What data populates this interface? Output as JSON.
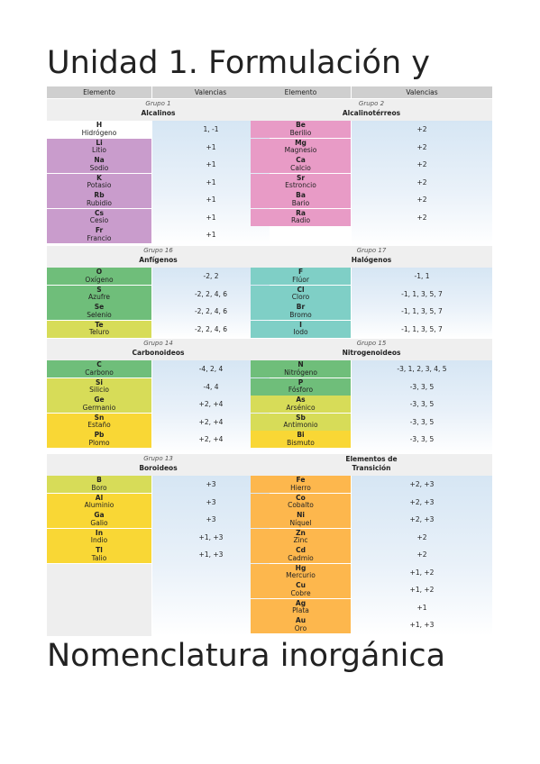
{
  "title_line1": "Unidad 1. Formulación y",
  "title_line2": "Nomenclatura inorgánica",
  "headers": [
    "Elemento",
    "Valencias",
    "Elemento",
    "Valencias"
  ],
  "left_groups": [
    {
      "title": "Grupo 1",
      "subtitle": "Alcalinos",
      "color": "#c99ccc",
      "elements": [
        {
          "sym": "H",
          "name": "Hidrógeno",
          "val": "1, -1",
          "color": "#ffffff"
        },
        {
          "sym": "Li",
          "name": "Litio",
          "val": "+1"
        },
        {
          "sym": "Na",
          "name": "Sodio",
          "val": "+1"
        },
        {
          "sym": "K",
          "name": "Potasio",
          "val": "+1"
        },
        {
          "sym": "Rb",
          "name": "Rubidio",
          "val": "+1"
        },
        {
          "sym": "Cs",
          "name": "Cesio",
          "val": "+1"
        },
        {
          "sym": "Fr",
          "name": "Francio",
          "val": "+1"
        }
      ]
    },
    {
      "title": "Grupo 16",
      "subtitle": "Anfígenos",
      "color": "#6fbe7a",
      "elements": [
        {
          "sym": "O",
          "name": "Oxígeno",
          "val": "-2, 2"
        },
        {
          "sym": "S",
          "name": "Azufre",
          "val": "-2, 2, 4, 6"
        },
        {
          "sym": "Se",
          "name": "Selenio",
          "val": "-2, 2, 4, 6"
        },
        {
          "sym": "Te",
          "name": "Teluro",
          "val": "-2, 2, 4, 6",
          "color": "#d7dc58"
        }
      ]
    },
    {
      "title": "Grupo 14",
      "subtitle": "Carbonoideos",
      "color": "#d7dc58",
      "elements": [
        {
          "sym": "C",
          "name": "Carbono",
          "val": "-4, 2, 4",
          "color": "#6fbe7a"
        },
        {
          "sym": "Si",
          "name": "Silicio",
          "val": "-4, 4"
        },
        {
          "sym": "Ge",
          "name": "Germanio",
          "val": "+2, +4"
        },
        {
          "sym": "Sn",
          "name": "Estaño",
          "val": "+2, +4",
          "color": "#f9d735"
        },
        {
          "sym": "Pb",
          "name": "Plomo",
          "val": "+2, +4",
          "color": "#f9d735"
        }
      ]
    },
    {
      "title": "Grupo 13",
      "subtitle": "Boroideos",
      "color": "#f9d735",
      "elements": [
        {
          "sym": "B",
          "name": "Boro",
          "val": "+3",
          "color": "#d7dc58"
        },
        {
          "sym": "Al",
          "name": "Aluminio",
          "val": "+3"
        },
        {
          "sym": "Ga",
          "name": "Galio",
          "val": "+3"
        },
        {
          "sym": "In",
          "name": "Indio",
          "val": "+1, +3"
        },
        {
          "sym": "Tl",
          "name": "Talio",
          "val": "+1, +3"
        }
      ]
    }
  ],
  "right_groups": [
    {
      "title": "Grupo 2",
      "subtitle": "Alcalinotérreos",
      "color": "#e89bc6",
      "elements": [
        {
          "sym": "Be",
          "name": "Berilio",
          "val": "+2"
        },
        {
          "sym": "Mg",
          "name": "Magnesio",
          "val": "+2"
        },
        {
          "sym": "Ca",
          "name": "Calcio",
          "val": "+2"
        },
        {
          "sym": "Sr",
          "name": "Estroncio",
          "val": "+2"
        },
        {
          "sym": "Ba",
          "name": "Bario",
          "val": "+2"
        },
        {
          "sym": "Ra",
          "name": "Radio",
          "val": "+2"
        }
      ]
    },
    {
      "title": "Grupo 17",
      "subtitle": "Halógenos",
      "color": "#7fcfc6",
      "elements": [
        {
          "sym": "F",
          "name": "Flúor",
          "val": "-1, 1"
        },
        {
          "sym": "Cl",
          "name": "Cloro",
          "val": "-1, 1, 3, 5, 7"
        },
        {
          "sym": "Br",
          "name": "Bromo",
          "val": "-1, 1, 3, 5, 7"
        },
        {
          "sym": "I",
          "name": "Iodo",
          "val": "-1, 1, 3, 5, 7"
        }
      ]
    },
    {
      "title": "Grupo 15",
      "subtitle": "Nitrogenoideos",
      "color": "#d7dc58",
      "elements": [
        {
          "sym": "N",
          "name": "Nitrógeno",
          "val": "-3, 1, 2, 3, 4, 5",
          "color": "#6fbe7a"
        },
        {
          "sym": "P",
          "name": "Fósforo",
          "val": "-3, 3, 5",
          "color": "#6fbe7a"
        },
        {
          "sym": "As",
          "name": "Arsénico",
          "val": "-3, 3, 5"
        },
        {
          "sym": "Sb",
          "name": "Antimonio",
          "val": "-3, 3, 5"
        },
        {
          "sym": "Bi",
          "name": "Bismuto",
          "val": "-3, 3, 5",
          "color": "#f9d735"
        }
      ]
    },
    {
      "title": "",
      "subtitle": "Elementos de Transición",
      "color": "#fdb74d",
      "elements": [
        {
          "sym": "Fe",
          "name": "Hierro",
          "val": "+2, +3"
        },
        {
          "sym": "Co",
          "name": "Cobalto",
          "val": "+2, +3"
        },
        {
          "sym": "Ni",
          "name": "Níquel",
          "val": "+2, +3"
        },
        {
          "sym": "Zn",
          "name": "Zinc",
          "val": "+2"
        },
        {
          "sym": "Cd",
          "name": "Cadmio",
          "val": "+2"
        },
        {
          "sym": "Hg",
          "name": "Mercurio",
          "val": "+1, +2"
        },
        {
          "sym": "Cu",
          "name": "Cobre",
          "val": "+1, +2"
        },
        {
          "sym": "Ag",
          "name": "Plata",
          "val": "+1"
        },
        {
          "sym": "Au",
          "name": "Oro",
          "val": "+1, +3"
        }
      ]
    }
  ]
}
